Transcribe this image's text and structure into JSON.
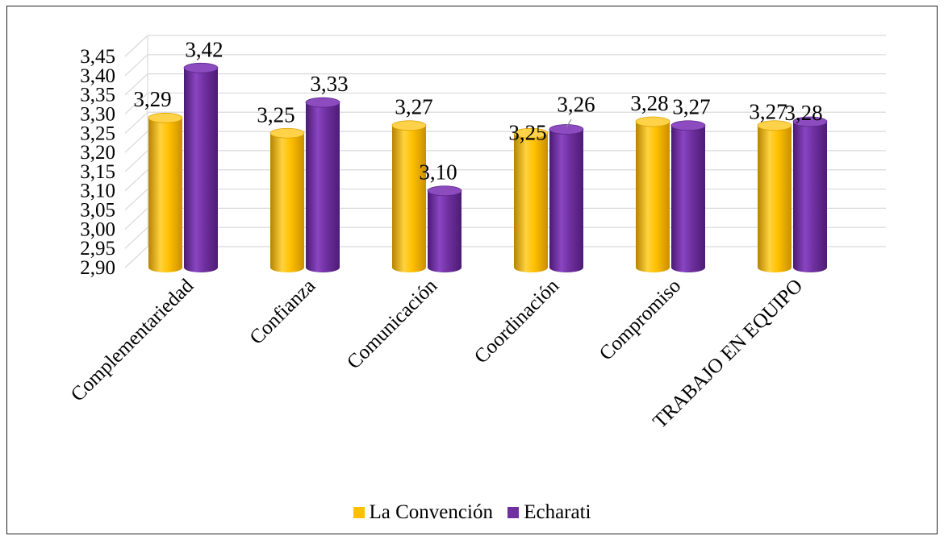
{
  "chart_data": {
    "type": "bar",
    "style": "3d-cylinder",
    "categories": [
      "Complementariedad",
      "Confianza",
      "Comunicación",
      "Coordinación",
      "Compromiso",
      "TRABAJO EN EQUIPO"
    ],
    "series": [
      {
        "name": "La Convención",
        "color": "#FFC000",
        "values": [
          3.29,
          3.25,
          3.27,
          3.25,
          3.28,
          3.27
        ],
        "labels": [
          "3,29",
          "3,25",
          "3,27",
          "3,25",
          "3,28",
          "3,27"
        ]
      },
      {
        "name": "Echarati",
        "color": "#7030A0",
        "values": [
          3.42,
          3.33,
          3.1,
          3.26,
          3.27,
          3.28
        ],
        "labels": [
          "3,42",
          "3,33",
          "3,10",
          "3,26",
          "3,27",
          "3,28"
        ]
      }
    ],
    "yticks": [
      "2,90",
      "2,95",
      "3,00",
      "3,05",
      "3,10",
      "3,15",
      "3,20",
      "3,25",
      "3,30",
      "3,35",
      "3,40",
      "3,45"
    ],
    "ylim": [
      2.9,
      3.45
    ],
    "grid": true,
    "legend_position": "bottom"
  }
}
